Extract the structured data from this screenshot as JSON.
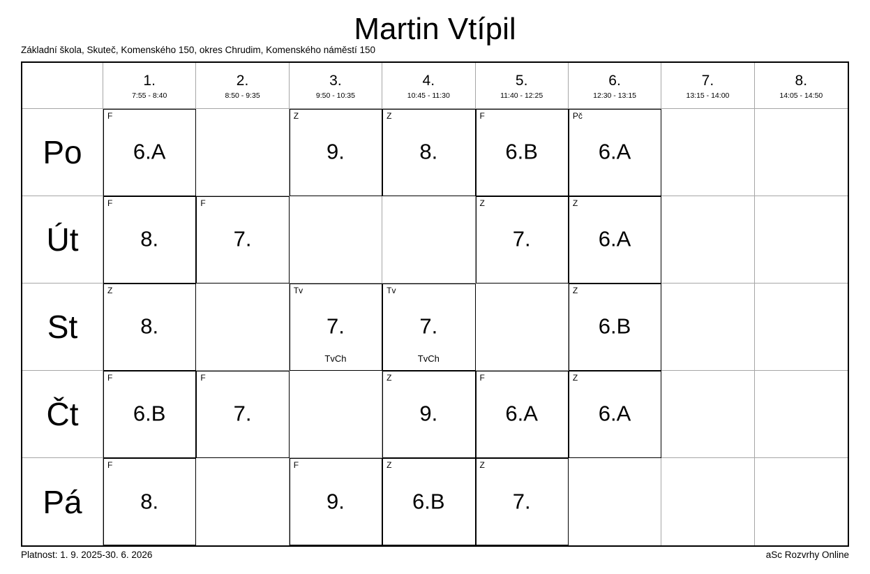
{
  "title": "Martin Vtípil",
  "subtitle": "Základní škola, Skuteč, Komenského 150, okres Chrudim, Komenského náměstí 150",
  "footer": {
    "left": "Platnost: 1. 9. 2025-30. 6. 2026",
    "right": "aSc Rozvrhy Online"
  },
  "colors": {
    "grid_line": "#a6a6a6",
    "lesson_border": "#000000",
    "text": "#000000",
    "background": "#ffffff"
  },
  "periods": [
    {
      "num": "1.",
      "time": "7:55 - 8:40"
    },
    {
      "num": "2.",
      "time": "8:50 - 9:35"
    },
    {
      "num": "3.",
      "time": "9:50 - 10:35"
    },
    {
      "num": "4.",
      "time": "10:45 - 11:30"
    },
    {
      "num": "5.",
      "time": "11:40 - 12:25"
    },
    {
      "num": "6.",
      "time": "12:30 - 13:15"
    },
    {
      "num": "7.",
      "time": "13:15 - 14:00"
    },
    {
      "num": "8.",
      "time": "14:05 - 14:50"
    }
  ],
  "days": [
    {
      "label": "Po",
      "lessons": [
        {
          "subject": "F",
          "class": "6.A"
        },
        null,
        {
          "subject": "Z",
          "class": "9."
        },
        {
          "subject": "Z",
          "class": "8."
        },
        {
          "subject": "F",
          "class": "6.B"
        },
        {
          "subject": "Pč",
          "class": "6.A"
        },
        null,
        null
      ]
    },
    {
      "label": "Út",
      "lessons": [
        {
          "subject": "F",
          "class": "8."
        },
        {
          "subject": "F",
          "class": "7."
        },
        null,
        null,
        {
          "subject": "Z",
          "class": "7."
        },
        {
          "subject": "Z",
          "class": "6.A"
        },
        null,
        null
      ]
    },
    {
      "label": "St",
      "lessons": [
        {
          "subject": "Z",
          "class": "8."
        },
        null,
        {
          "subject": "Tv",
          "class": "7.",
          "group": "TvCh"
        },
        {
          "subject": "Tv",
          "class": "7.",
          "group": "TvCh"
        },
        null,
        {
          "subject": "Z",
          "class": "6.B"
        },
        null,
        null
      ]
    },
    {
      "label": "Čt",
      "lessons": [
        {
          "subject": "F",
          "class": "6.B"
        },
        {
          "subject": "F",
          "class": "7."
        },
        null,
        {
          "subject": "Z",
          "class": "9."
        },
        {
          "subject": "F",
          "class": "6.A"
        },
        {
          "subject": "Z",
          "class": "6.A"
        },
        null,
        null
      ]
    },
    {
      "label": "Pá",
      "lessons": [
        {
          "subject": "F",
          "class": "8."
        },
        null,
        {
          "subject": "F",
          "class": "9."
        },
        {
          "subject": "Z",
          "class": "6.B"
        },
        {
          "subject": "Z",
          "class": "7."
        },
        null,
        null,
        null
      ]
    }
  ]
}
